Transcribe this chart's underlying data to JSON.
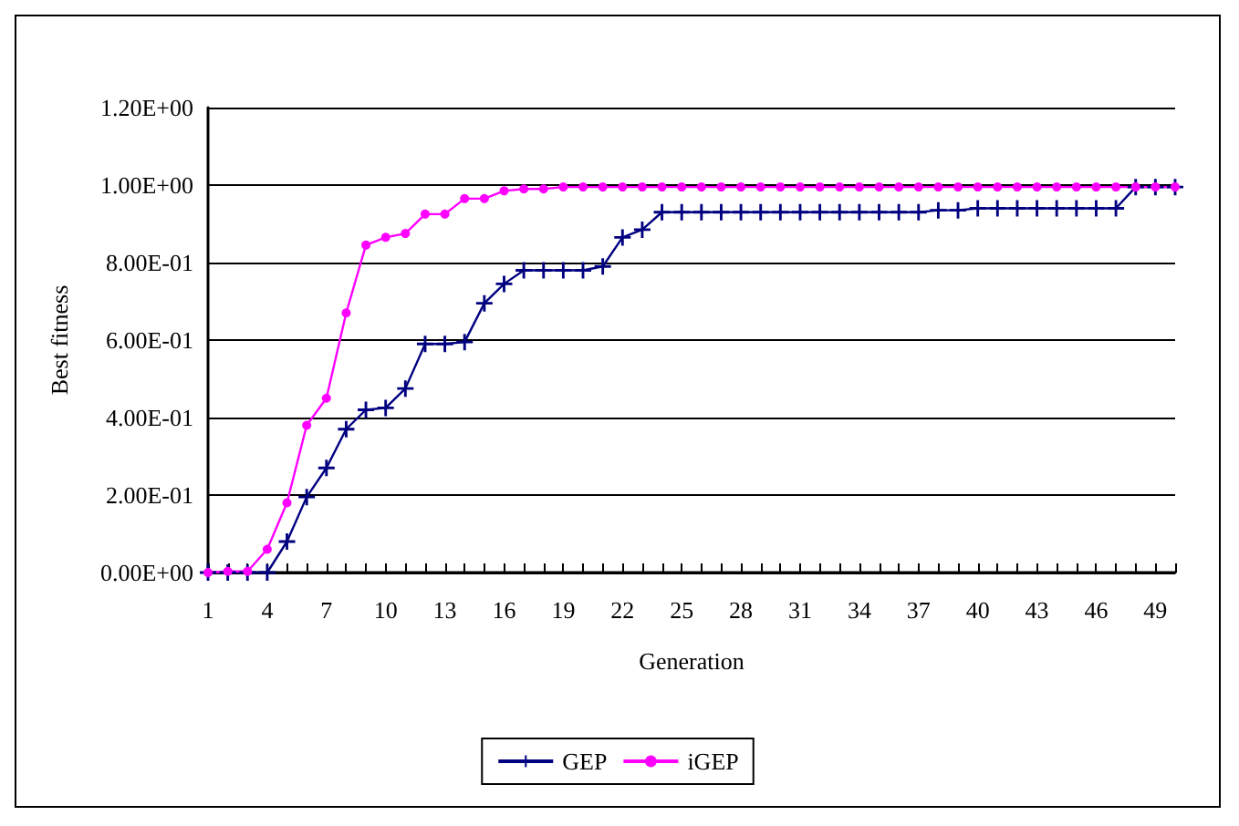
{
  "chart_data": {
    "type": "line",
    "xlabel": "Generation",
    "ylabel": "Best fitness",
    "categories": [
      "1",
      null,
      null,
      "4",
      null,
      null,
      "7",
      null,
      null,
      "10",
      null,
      null,
      "13",
      null,
      null,
      "16",
      null,
      null,
      "19",
      null,
      null,
      "22",
      null,
      null,
      "25",
      null,
      null,
      "28",
      null,
      null,
      "31",
      null,
      null,
      "34",
      null,
      null,
      "37",
      null,
      null,
      "40",
      null,
      null,
      "43",
      null,
      null,
      "46",
      null,
      null,
      "49",
      null
    ],
    "series": [
      {
        "name": "GEP",
        "color": "#000080",
        "marker": "cross",
        "values": [
          0,
          0,
          0,
          0,
          0.08,
          0.195,
          0.27,
          0.37,
          0.42,
          0.425,
          0.475,
          0.59,
          0.59,
          0.595,
          0.695,
          0.745,
          0.78,
          0.78,
          0.78,
          0.78,
          0.79,
          0.865,
          0.885,
          0.93,
          0.93,
          0.93,
          0.93,
          0.93,
          0.93,
          0.93,
          0.93,
          0.93,
          0.93,
          0.93,
          0.93,
          0.93,
          0.93,
          0.935,
          0.935,
          0.94,
          0.94,
          0.94,
          0.94,
          0.94,
          0.94,
          0.94,
          0.94,
          0.995,
          0.995,
          0.995
        ]
      },
      {
        "name": "iGEP",
        "color": "#ff00ff",
        "marker": "circle",
        "values": [
          0,
          0.003,
          0.003,
          0.06,
          0.18,
          0.38,
          0.45,
          0.67,
          0.845,
          0.865,
          0.875,
          0.925,
          0.925,
          0.965,
          0.965,
          0.985,
          0.99,
          0.99,
          0.995,
          0.995,
          0.995,
          0.995,
          0.995,
          0.995,
          0.995,
          0.995,
          0.995,
          0.995,
          0.995,
          0.995,
          0.995,
          0.995,
          0.995,
          0.995,
          0.995,
          0.995,
          0.995,
          0.995,
          0.995,
          0.995,
          0.995,
          0.995,
          0.995,
          0.995,
          0.995,
          0.995,
          0.995,
          0.995,
          0.995,
          0.995
        ]
      }
    ],
    "ylim": [
      0,
      1.2
    ],
    "yticks": [
      {
        "value": 0,
        "label": "0.00E+00"
      },
      {
        "value": 0.2,
        "label": "2.00E-01"
      },
      {
        "value": 0.4,
        "label": "4.00E-01"
      },
      {
        "value": 0.6,
        "label": "6.00E-01"
      },
      {
        "value": 0.8,
        "label": "8.00E-01"
      },
      {
        "value": 1.0,
        "label": "1.00E+00"
      },
      {
        "value": 1.2,
        "label": "1.20E+00"
      }
    ],
    "grid": "y",
    "legend": "bottom",
    "line_style": "solid"
  }
}
